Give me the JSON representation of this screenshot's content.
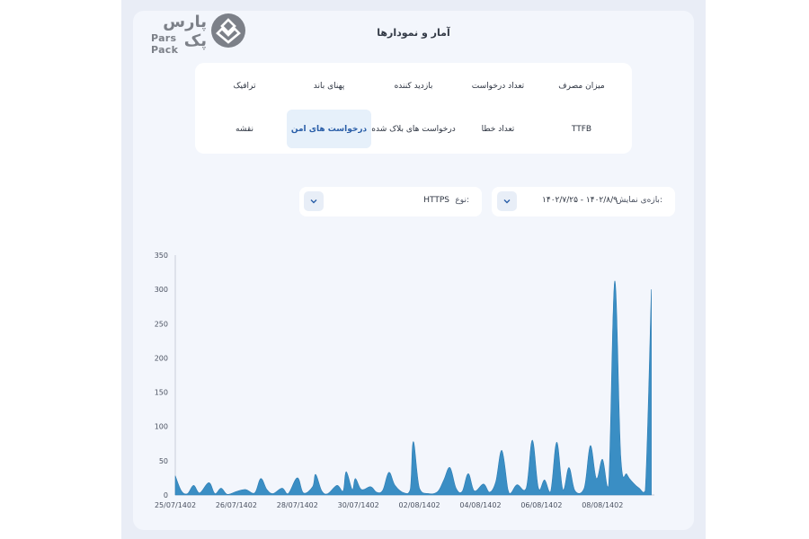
{
  "logo": {
    "text_fa": "پارس پک",
    "text_en": "Pars Pack"
  },
  "page_title": "آمار و نمودارها",
  "tabs": [
    {
      "label": "میزان مصرف",
      "active": false
    },
    {
      "label": "تعداد درخواست",
      "active": false
    },
    {
      "label": "بازدید کننده",
      "active": false
    },
    {
      "label": "پهنای باند",
      "active": false
    },
    {
      "label": "ترافیک",
      "active": false
    },
    {
      "label": "TTFB",
      "active": false
    },
    {
      "label": "تعداد خطا",
      "active": false
    },
    {
      "label": "درخواست های بلاک شده",
      "active": false
    },
    {
      "label": "درخواست های امن",
      "active": true
    },
    {
      "label": "نقشه",
      "active": false
    }
  ],
  "filters": {
    "range": {
      "label": "بازه‌ی نمایش:",
      "value": "۱۴۰۲/۷/۲۵ - ۱۴۰۲/۸/۹"
    },
    "type": {
      "label": "نوع:",
      "value": "HTTPS"
    }
  },
  "colors": {
    "area_fill": "#3a8ec4",
    "active_tab_bg": "#e6f0fa"
  },
  "chart_data": {
    "type": "area",
    "ylim": [
      0,
      350
    ],
    "y_ticks": [
      0,
      50,
      100,
      150,
      200,
      250,
      300,
      350
    ],
    "x_tick_labels": [
      "25/07/1402",
      "26/07/1402",
      "28/07/1402",
      "30/07/1402",
      "02/08/1402",
      "04/08/1402",
      "06/08/1402",
      "08/08/1402"
    ],
    "x_tick_days": [
      0,
      2,
      4,
      6,
      8,
      10,
      12,
      14
    ],
    "x_range_days": [
      0,
      15.7
    ],
    "grid": false,
    "series": [
      {
        "values": [
          [
            0.0,
            28
          ],
          [
            0.2,
            6
          ],
          [
            0.4,
            2
          ],
          [
            0.6,
            14
          ],
          [
            0.8,
            3
          ],
          [
            1.1,
            18
          ],
          [
            1.3,
            2
          ],
          [
            1.5,
            10
          ],
          [
            1.7,
            1
          ],
          [
            2.0,
            5
          ],
          [
            2.3,
            8
          ],
          [
            2.6,
            3
          ],
          [
            2.8,
            24
          ],
          [
            3.0,
            8
          ],
          [
            3.2,
            2
          ],
          [
            3.5,
            10
          ],
          [
            3.7,
            2
          ],
          [
            4.0,
            25
          ],
          [
            4.2,
            3
          ],
          [
            4.5,
            12
          ],
          [
            4.6,
            30
          ],
          [
            4.8,
            6
          ],
          [
            5.0,
            2
          ],
          [
            5.3,
            14
          ],
          [
            5.5,
            6
          ],
          [
            5.6,
            34
          ],
          [
            5.8,
            8
          ],
          [
            5.9,
            24
          ],
          [
            6.1,
            8
          ],
          [
            6.4,
            12
          ],
          [
            6.6,
            4
          ],
          [
            6.8,
            7
          ],
          [
            7.0,
            33
          ],
          [
            7.2,
            14
          ],
          [
            7.5,
            3
          ],
          [
            7.7,
            8
          ],
          [
            7.8,
            78
          ],
          [
            8.0,
            10
          ],
          [
            8.3,
            2
          ],
          [
            8.6,
            5
          ],
          [
            8.8,
            22
          ],
          [
            9.0,
            40
          ],
          [
            9.2,
            10
          ],
          [
            9.4,
            5
          ],
          [
            9.6,
            31
          ],
          [
            9.8,
            6
          ],
          [
            10.1,
            16
          ],
          [
            10.3,
            4
          ],
          [
            10.5,
            19
          ],
          [
            10.7,
            65
          ],
          [
            10.9,
            8
          ],
          [
            11.0,
            3
          ],
          [
            11.2,
            15
          ],
          [
            11.5,
            10
          ],
          [
            11.7,
            80
          ],
          [
            11.9,
            10
          ],
          [
            12.1,
            22
          ],
          [
            12.3,
            5
          ],
          [
            12.5,
            77
          ],
          [
            12.7,
            8
          ],
          [
            12.9,
            40
          ],
          [
            13.1,
            6
          ],
          [
            13.4,
            10
          ],
          [
            13.6,
            72
          ],
          [
            13.8,
            24
          ],
          [
            14.0,
            52
          ],
          [
            14.2,
            14
          ],
          [
            14.4,
            312
          ],
          [
            14.6,
            55
          ],
          [
            14.8,
            30
          ],
          [
            15.0,
            18
          ],
          [
            15.2,
            10
          ],
          [
            15.4,
            6
          ],
          [
            15.6,
            300
          ]
        ]
      }
    ]
  }
}
